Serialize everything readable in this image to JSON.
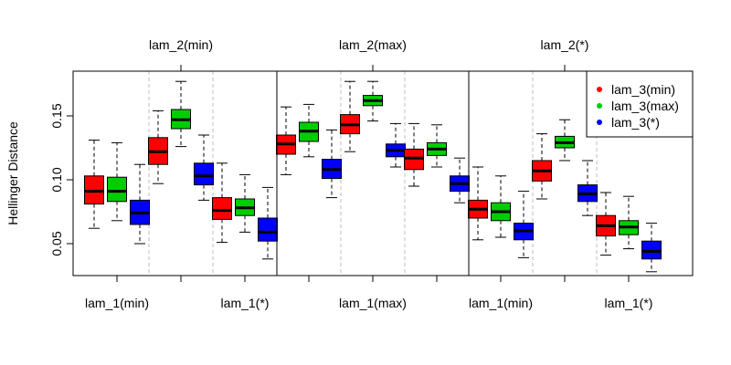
{
  "chart_data": {
    "type": "boxplot",
    "ylabel": "Hellinger Distance",
    "ylim": [
      0.025,
      0.185
    ],
    "y_ticks": [
      "0.05",
      "0.10",
      "0.15"
    ],
    "y_tick_values": [
      0.05,
      0.1,
      0.15
    ],
    "top_labels": [
      "lam_2(min)",
      "lam_2(max)",
      "lam_2(*)"
    ],
    "bottom_labels": [
      {
        "text": "lam_1(min)",
        "position": 1
      },
      {
        "text": "lam_1(*)",
        "position": 3
      },
      {
        "text": "lam_1(max)",
        "position": 5
      },
      {
        "text": "lam_1(min)",
        "position": 7
      },
      {
        "text": "lam_1(*)",
        "position": 9
      }
    ],
    "legend": {
      "position": "top-right",
      "entries": [
        {
          "name": "lam_3(min)",
          "color": "#ff0000"
        },
        {
          "name": "lam_3(max)",
          "color": "#00cd00"
        },
        {
          "name": "lam_3(*)",
          "color": "#0000ff"
        }
      ]
    },
    "series_colors": [
      "#ff0000",
      "#00cd00",
      "#0000ff"
    ],
    "groups": [
      {
        "boxes": [
          {
            "min": 0.062,
            "q1": 0.081,
            "median": 0.091,
            "q3": 0.103,
            "max": 0.131
          },
          {
            "min": 0.068,
            "q1": 0.083,
            "median": 0.091,
            "q3": 0.102,
            "max": 0.129
          },
          {
            "min": 0.05,
            "q1": 0.065,
            "median": 0.074,
            "q3": 0.084,
            "max": 0.112
          }
        ]
      },
      {
        "boxes": [
          {
            "min": 0.097,
            "q1": 0.112,
            "median": 0.122,
            "q3": 0.133,
            "max": 0.154
          },
          {
            "min": 0.126,
            "q1": 0.14,
            "median": 0.147,
            "q3": 0.155,
            "max": 0.177
          },
          {
            "min": 0.084,
            "q1": 0.096,
            "median": 0.103,
            "q3": 0.113,
            "max": 0.135
          }
        ]
      },
      {
        "boxes": [
          {
            "min": 0.051,
            "q1": 0.069,
            "median": 0.076,
            "q3": 0.086,
            "max": 0.113
          },
          {
            "min": 0.059,
            "q1": 0.072,
            "median": 0.078,
            "q3": 0.085,
            "max": 0.104
          },
          {
            "min": 0.038,
            "q1": 0.052,
            "median": 0.059,
            "q3": 0.07,
            "max": 0.094
          }
        ]
      },
      {
        "boxes": [
          {
            "min": 0.104,
            "q1": 0.12,
            "median": 0.128,
            "q3": 0.135,
            "max": 0.157
          },
          {
            "min": 0.118,
            "q1": 0.13,
            "median": 0.138,
            "q3": 0.145,
            "max": 0.159
          },
          {
            "min": 0.086,
            "q1": 0.101,
            "median": 0.108,
            "q3": 0.116,
            "max": 0.139
          }
        ]
      },
      {
        "boxes": [
          {
            "min": 0.122,
            "q1": 0.136,
            "median": 0.143,
            "q3": 0.151,
            "max": 0.177
          },
          {
            "min": 0.146,
            "q1": 0.158,
            "median": 0.162,
            "q3": 0.166,
            "max": 0.177
          },
          {
            "min": 0.11,
            "q1": 0.118,
            "median": 0.123,
            "q3": 0.128,
            "max": 0.144
          }
        ]
      },
      {
        "boxes": [
          {
            "min": 0.095,
            "q1": 0.108,
            "median": 0.117,
            "q3": 0.124,
            "max": 0.144
          },
          {
            "min": 0.11,
            "q1": 0.119,
            "median": 0.124,
            "q3": 0.129,
            "max": 0.143
          },
          {
            "min": 0.082,
            "q1": 0.091,
            "median": 0.097,
            "q3": 0.103,
            "max": 0.117
          }
        ]
      },
      {
        "boxes": [
          {
            "min": 0.053,
            "q1": 0.07,
            "median": 0.077,
            "q3": 0.084,
            "max": 0.11
          },
          {
            "min": 0.055,
            "q1": 0.068,
            "median": 0.075,
            "q3": 0.082,
            "max": 0.103
          },
          {
            "min": 0.039,
            "q1": 0.053,
            "median": 0.06,
            "q3": 0.066,
            "max": 0.091
          }
        ]
      },
      {
        "boxes": [
          {
            "min": 0.085,
            "q1": 0.099,
            "median": 0.107,
            "q3": 0.115,
            "max": 0.136
          },
          {
            "min": 0.115,
            "q1": 0.125,
            "median": 0.129,
            "q3": 0.134,
            "max": 0.147
          },
          {
            "min": 0.072,
            "q1": 0.083,
            "median": 0.089,
            "q3": 0.096,
            "max": 0.115
          }
        ]
      },
      {
        "boxes": [
          {
            "min": 0.041,
            "q1": 0.056,
            "median": 0.064,
            "q3": 0.072,
            "max": 0.09
          },
          {
            "min": 0.046,
            "q1": 0.057,
            "median": 0.063,
            "q3": 0.068,
            "max": 0.087
          },
          {
            "min": 0.028,
            "q1": 0.038,
            "median": 0.044,
            "q3": 0.052,
            "max": 0.066
          }
        ]
      }
    ]
  }
}
